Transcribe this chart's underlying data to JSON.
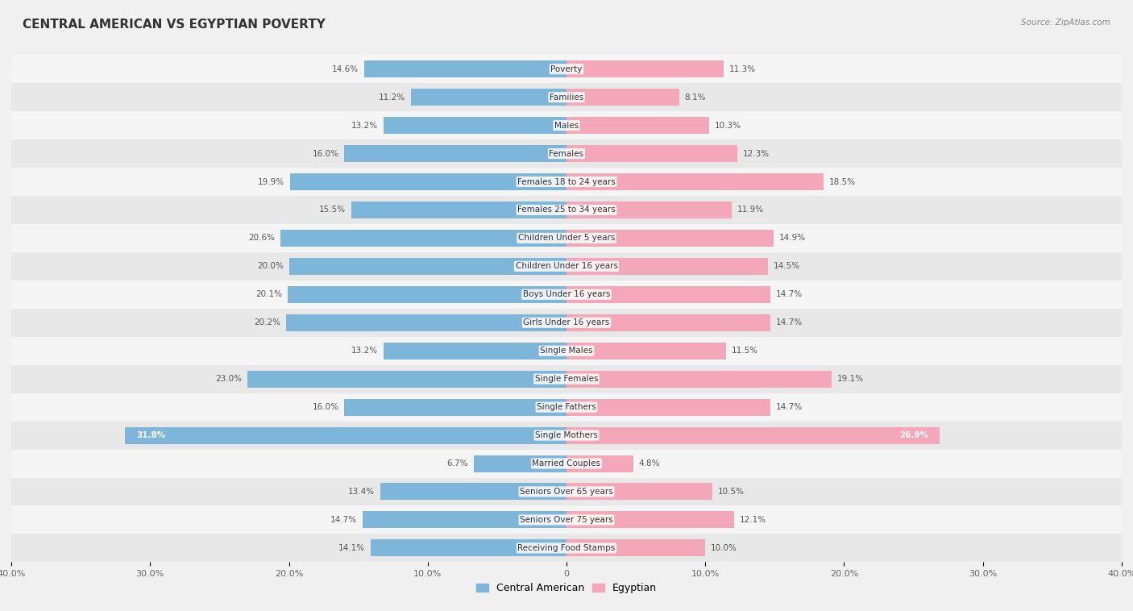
{
  "title": "CENTRAL AMERICAN VS EGYPTIAN POVERTY",
  "source": "Source: ZipAtlas.com",
  "categories": [
    "Poverty",
    "Families",
    "Males",
    "Females",
    "Females 18 to 24 years",
    "Females 25 to 34 years",
    "Children Under 5 years",
    "Children Under 16 years",
    "Boys Under 16 years",
    "Girls Under 16 years",
    "Single Males",
    "Single Females",
    "Single Fathers",
    "Single Mothers",
    "Married Couples",
    "Seniors Over 65 years",
    "Seniors Over 75 years",
    "Receiving Food Stamps"
  ],
  "central_american": [
    14.6,
    11.2,
    13.2,
    16.0,
    19.9,
    15.5,
    20.6,
    20.0,
    20.1,
    20.2,
    13.2,
    23.0,
    16.0,
    31.8,
    6.7,
    13.4,
    14.7,
    14.1
  ],
  "egyptian": [
    11.3,
    8.1,
    10.3,
    12.3,
    18.5,
    11.9,
    14.9,
    14.5,
    14.7,
    14.7,
    11.5,
    19.1,
    14.7,
    26.9,
    4.8,
    10.5,
    12.1,
    10.0
  ],
  "ca_color": "#7EB6D9",
  "eg_color": "#F4A7B9",
  "bg_color": "#f0f0f0",
  "row_color_light": "#f5f5f5",
  "row_color_dark": "#e8e8e8",
  "axis_max": 40.0,
  "label_fontsize": 7.5,
  "title_fontsize": 11,
  "bar_height": 0.6
}
